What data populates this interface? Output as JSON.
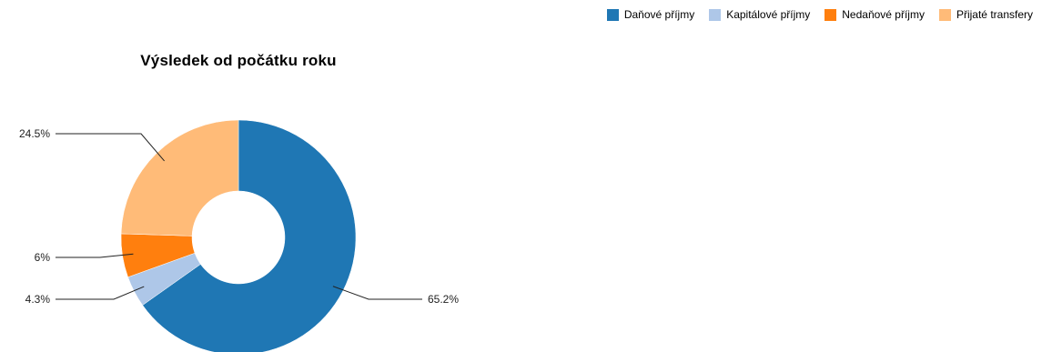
{
  "chart_data": {
    "type": "pie",
    "subtype": "donut",
    "title": "Výsledek od počátku roku",
    "categories": [
      "Daňové příjmy",
      "Kapitálové příjmy",
      "Nedaňové příjmy",
      "Přijaté transfery"
    ],
    "values": [
      65.2,
      4.3,
      6.0,
      24.5
    ],
    "data_labels": [
      "65.2%",
      "4.3%",
      "6%",
      "24.5%"
    ],
    "colors": [
      "#1f77b4",
      "#aec7e8",
      "#ff7f0e",
      "#ffbb78"
    ],
    "legend_position": "top-right"
  }
}
